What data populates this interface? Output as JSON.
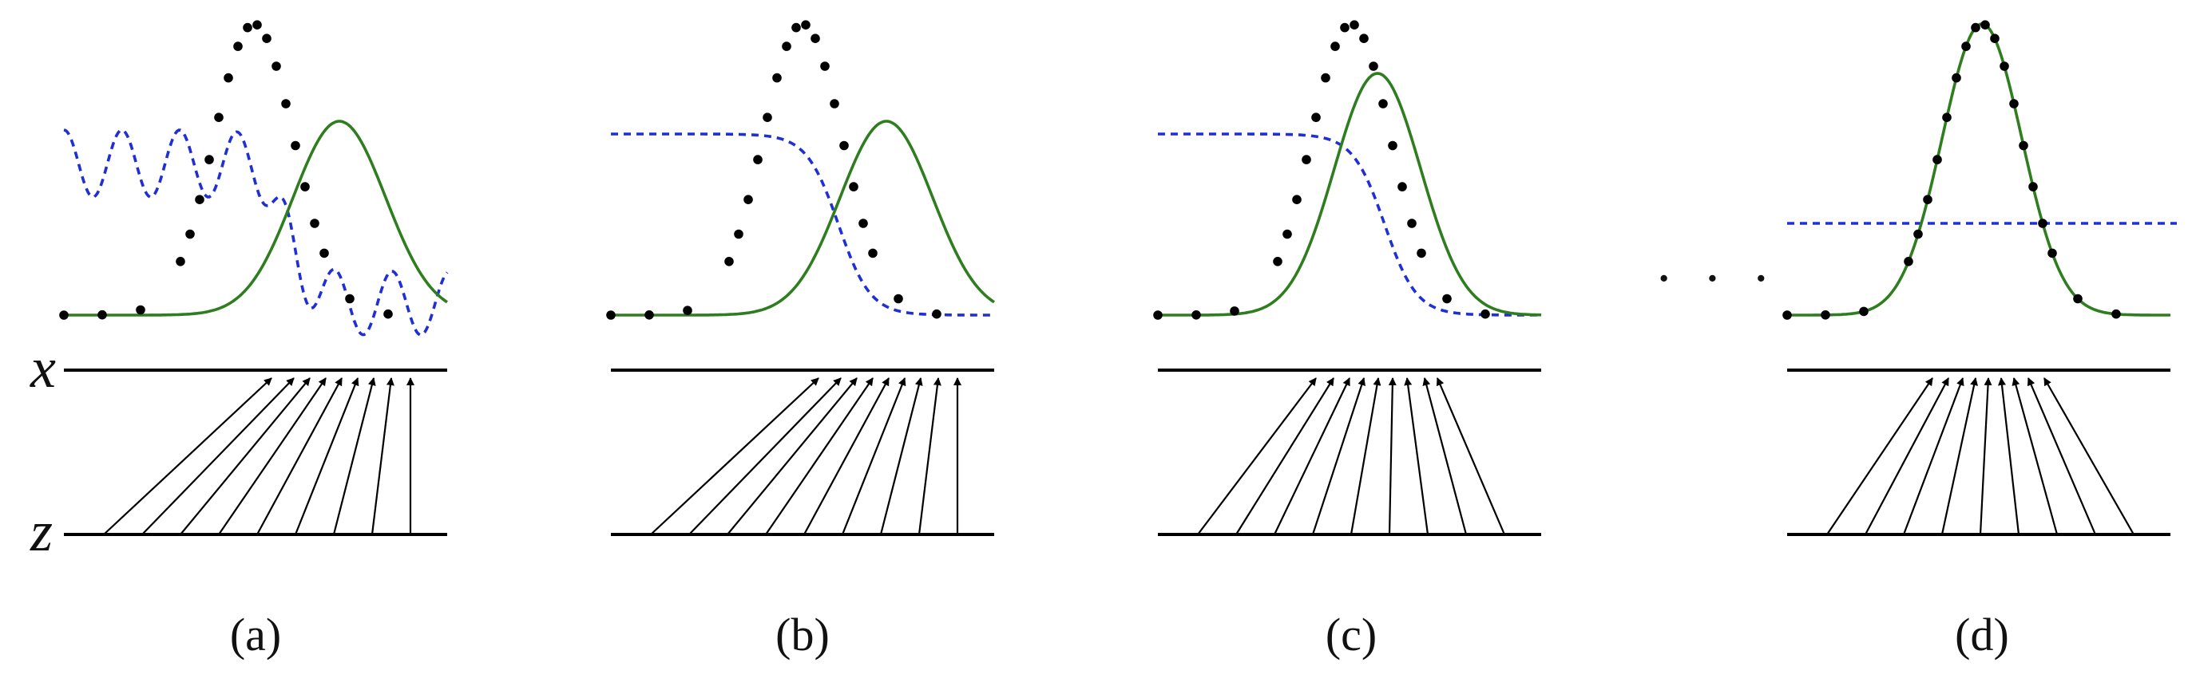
{
  "axis_labels": {
    "x": "x",
    "z": "z"
  },
  "ellipsis": "· · ·",
  "legend_colors": {
    "data": "#000000",
    "model": "#2e7d1e",
    "discriminator": "#1f2fd6"
  },
  "panels": [
    {
      "caption": "(a)",
      "discriminator_shape": "oscillating"
    },
    {
      "caption": "(b)",
      "discriminator_shape": "sigmoid"
    },
    {
      "caption": "(c)",
      "discriminator_shape": "sigmoid"
    },
    {
      "caption": "(d)",
      "discriminator_shape": "flat"
    }
  ]
}
